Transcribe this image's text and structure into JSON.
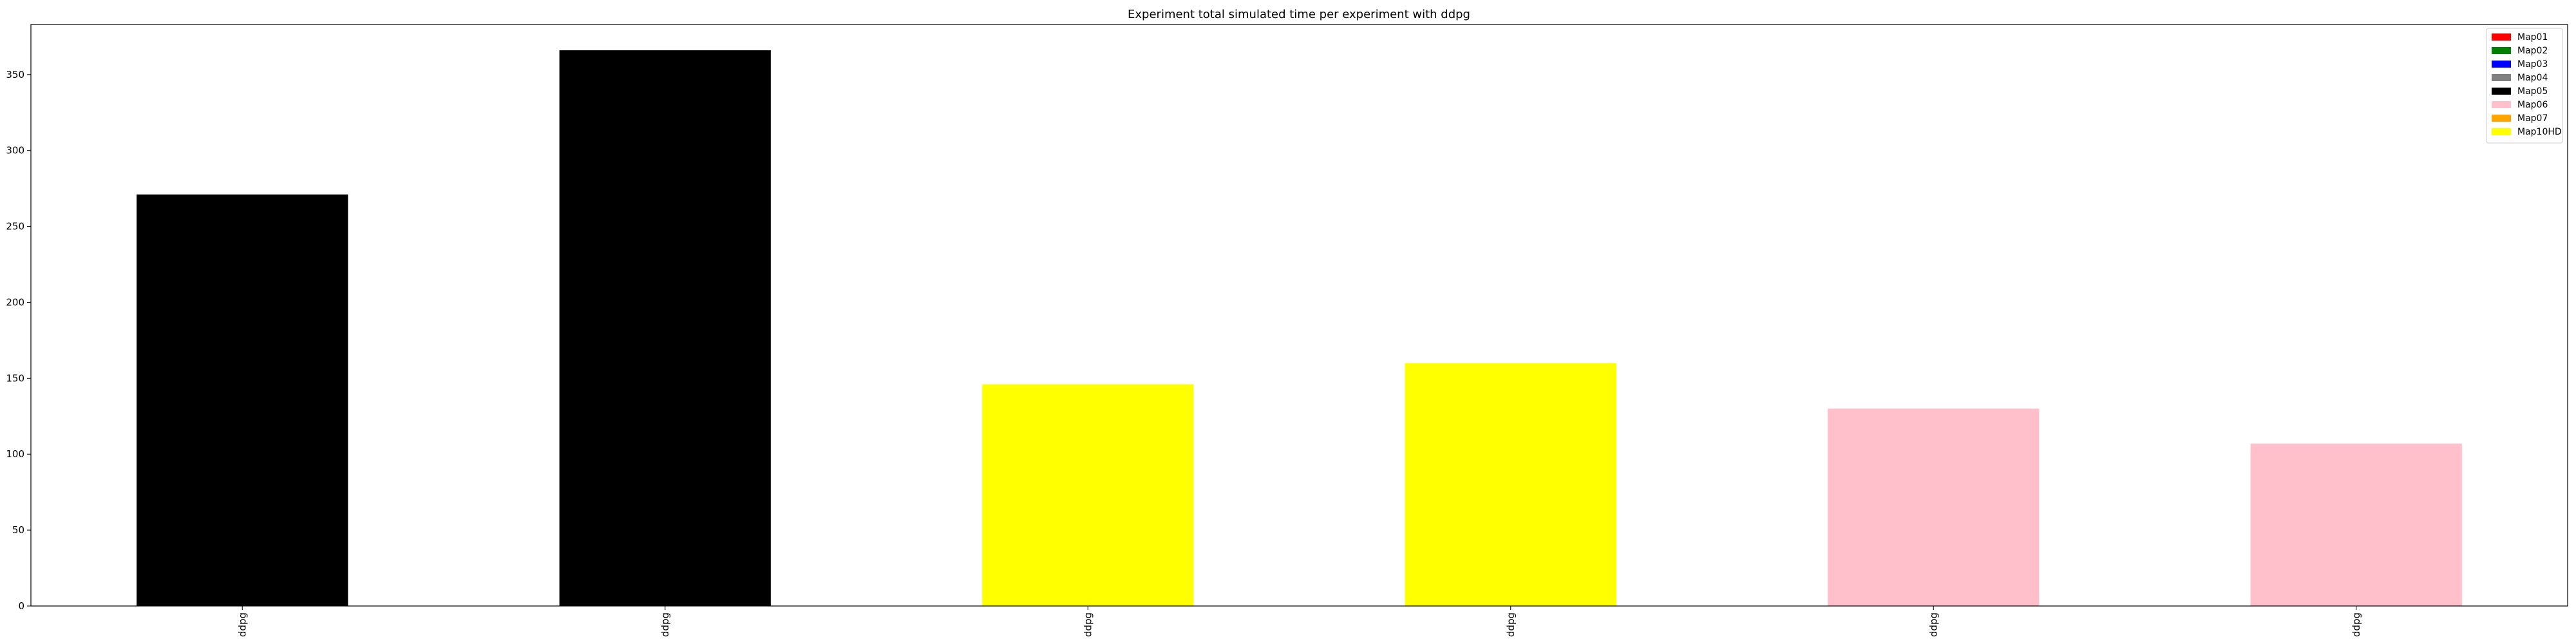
{
  "chart_data": {
    "type": "bar",
    "title": "Experiment total simulated time per experiment with ddpg",
    "xlabel": "",
    "ylabel": "",
    "categories": [
      "ddpg",
      "ddpg",
      "ddpg",
      "ddpg",
      "ddpg",
      "ddpg"
    ],
    "values": [
      271,
      366,
      146,
      160,
      130,
      107
    ],
    "bar_series": [
      "Map05",
      "Map05",
      "Map10HD",
      "Map10HD",
      "Map06",
      "Map06"
    ],
    "ylim": [
      0,
      383
    ],
    "yticks": [
      0,
      50,
      100,
      150,
      200,
      250,
      300,
      350
    ],
    "grid": false,
    "legend_position": "top-right",
    "legend": [
      {
        "name": "Map01",
        "color": "#ff0000"
      },
      {
        "name": "Map02",
        "color": "#008000"
      },
      {
        "name": "Map03",
        "color": "#0000ff"
      },
      {
        "name": "Map04",
        "color": "#808080"
      },
      {
        "name": "Map05",
        "color": "#000000"
      },
      {
        "name": "Map06",
        "color": "#ffc0cb"
      },
      {
        "name": "Map07",
        "color": "#ffa500"
      },
      {
        "name": "Map10HD",
        "color": "#ffff00"
      }
    ]
  }
}
